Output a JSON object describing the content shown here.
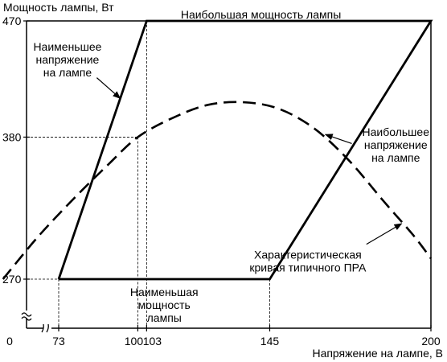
{
  "chart_data": {
    "type": "line",
    "title": "",
    "xlabel": "Напряжение на лампе, В",
    "ylabel": "Мощность лампы, Вт",
    "grid": false,
    "x_ticks": [
      {
        "value": 73,
        "label": "73"
      },
      {
        "value": 100,
        "label": "100"
      },
      {
        "value": 103,
        "label": "103"
      },
      {
        "value": 145,
        "label": "145"
      },
      {
        "value": 200,
        "label": "200"
      }
    ],
    "y_ticks": [
      {
        "value": 270,
        "label": "270"
      },
      {
        "value": 380,
        "label": "380"
      },
      {
        "value": 470,
        "label": "470"
      }
    ],
    "origin_label": "0",
    "x_range": [
      54,
      200
    ],
    "y_range": [
      248,
      480
    ],
    "boundary": {
      "points": [
        {
          "x": 73,
          "y": 270
        },
        {
          "x": 103,
          "y": 470
        },
        {
          "x": 200,
          "y": 470
        },
        {
          "x": 145,
          "y": 270
        },
        {
          "x": 73,
          "y": 270
        }
      ]
    },
    "typical_curve": {
      "points": [
        {
          "x": 54,
          "y": 270
        },
        {
          "x": 66,
          "y": 303
        },
        {
          "x": 78,
          "y": 332
        },
        {
          "x": 90,
          "y": 359
        },
        {
          "x": 100,
          "y": 380
        },
        {
          "x": 112,
          "y": 395
        },
        {
          "x": 124,
          "y": 405
        },
        {
          "x": 136,
          "y": 407
        },
        {
          "x": 148,
          "y": 402
        },
        {
          "x": 160,
          "y": 387
        },
        {
          "x": 172,
          "y": 362
        },
        {
          "x": 184,
          "y": 330
        },
        {
          "x": 194,
          "y": 304
        },
        {
          "x": 200,
          "y": 286
        }
      ]
    },
    "reference_lines": [
      {
        "x": 100,
        "y": 380
      },
      {
        "x": 103,
        "y": 470
      },
      {
        "x": 73,
        "y": 270
      },
      {
        "x": 145,
        "y": 270
      }
    ],
    "annotations": {
      "max_power": {
        "lines": [
          "Наибольшая мощность лампы"
        ],
        "x": 142,
        "y": 472,
        "anchor": "middle"
      },
      "min_power": {
        "lines": [
          "Наименьшая",
          "мощность",
          "лампы"
        ],
        "x": 109,
        "y": 257,
        "anchor": "middle"
      },
      "min_voltage": {
        "lines": [
          "Наименьшее",
          "напряжение",
          "на лампе"
        ],
        "x": 76,
        "y": 447,
        "anchor": "middle",
        "arrow_from": {
          "x": 86,
          "y": 426
        },
        "arrow_to": {
          "x": 94,
          "y": 410
        }
      },
      "max_voltage": {
        "lines": [
          "Наибольшее",
          "напряжение",
          "на лампе"
        ],
        "x": 188,
        "y": 381,
        "anchor": "middle",
        "arrow_from": {
          "x": 173,
          "y": 375
        },
        "arrow_to": {
          "x": 164,
          "y": 382
        }
      },
      "typical_curve_label": {
        "lines": [
          "Характеристическая",
          "кривая типичного ПРА"
        ],
        "x": 158,
        "y": 286,
        "anchor": "middle",
        "arrow_from": {
          "x": 178,
          "y": 297
        },
        "arrow_to": {
          "x": 190,
          "y": 313
        }
      }
    }
  }
}
